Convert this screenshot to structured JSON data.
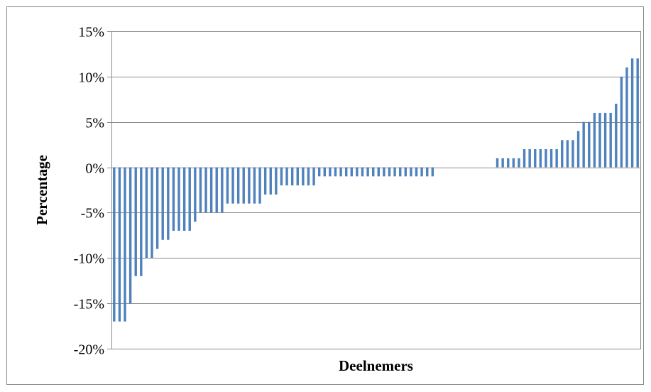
{
  "chart_data": {
    "type": "bar",
    "xlabel": "Deelnemers",
    "ylabel": "Percentage",
    "ylim": [
      -20,
      15
    ],
    "yticks": [
      15,
      10,
      5,
      0,
      -5,
      -10,
      -15,
      -20
    ],
    "ytick_labels": [
      "15%",
      "10%",
      "5%",
      "0%",
      "-5%",
      "-10%",
      "-15%",
      "-20%"
    ],
    "grid": true,
    "legend": "none",
    "bar_color": "#4f81bd",
    "values": [
      -17,
      -17,
      -17,
      -15,
      -12,
      -12,
      -10,
      -10,
      -9,
      -8,
      -8,
      -7,
      -7,
      -7,
      -7,
      -6,
      -5,
      -5,
      -5,
      -5,
      -5,
      -4,
      -4,
      -4,
      -4,
      -4,
      -4,
      -4,
      -3,
      -3,
      -3,
      -2,
      -2,
      -2,
      -2,
      -2,
      -2,
      -2,
      -1,
      -1,
      -1,
      -1,
      -1,
      -1,
      -1,
      -1,
      -1,
      -1,
      -1,
      -1,
      -1,
      -1,
      -1,
      -1,
      -1,
      -1,
      -1,
      -1,
      -1,
      -1,
      0,
      0,
      0,
      0,
      0,
      0,
      0,
      0,
      0,
      0,
      0,
      1,
      1,
      1,
      1,
      1,
      2,
      2,
      2,
      2,
      2,
      2,
      2,
      3,
      3,
      3,
      4,
      5,
      5,
      6,
      6,
      6,
      6,
      7,
      10,
      11,
      12,
      12
    ]
  }
}
